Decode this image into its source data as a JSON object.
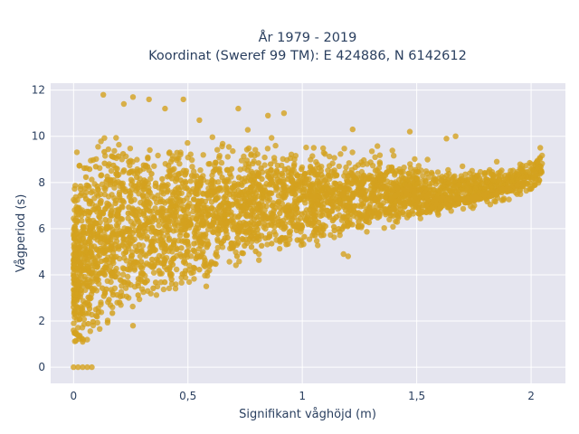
{
  "chart_data": {
    "type": "scatter",
    "title": "År 1979 - 2019",
    "subtitle": "Koordinat (Sweref 99 TM): E 424886, N 6142612",
    "xlabel": "Signifikant våghöjd (m)",
    "ylabel": "Vågperiod (s)",
    "xlim": [
      -0.1,
      2.15
    ],
    "ylim": [
      -0.7,
      12.3
    ],
    "x_ticks": [
      0,
      0.5,
      1,
      1.5,
      2
    ],
    "x_tick_labels": [
      "0",
      "0,5",
      "1",
      "1,5",
      "2"
    ],
    "y_ticks": [
      0,
      2,
      4,
      6,
      8,
      10,
      12
    ],
    "y_tick_labels": [
      "0",
      "2",
      "4",
      "6",
      "8",
      "10",
      "12"
    ],
    "grid": true,
    "colors": {
      "marker": "#d4a11e",
      "plot_bg": "#e5e5ef",
      "grid": "#ffffff",
      "text": "#2a3f5f"
    },
    "envelope": {
      "x": [
        0.0,
        0.05,
        0.1,
        0.2,
        0.3,
        0.5,
        0.7,
        1.0,
        1.3,
        1.6,
        1.9,
        2.05
      ],
      "y_low": [
        1.0,
        1.1,
        1.3,
        2.2,
        2.8,
        3.6,
        4.3,
        5.1,
        5.8,
        6.4,
        7.2,
        7.8
      ],
      "y_high": [
        9.5,
        11.0,
        11.8,
        11.7,
        11.3,
        10.8,
        10.8,
        10.3,
        9.9,
        9.0,
        8.8,
        9.5
      ]
    },
    "series": [
      {
        "values": [
          [
            0.0,
            0.0
          ],
          [
            0.02,
            0.0
          ],
          [
            0.04,
            0.0
          ],
          [
            0.06,
            0.0
          ],
          [
            0.08,
            0.0
          ],
          [
            0.13,
            11.8
          ],
          [
            0.26,
            11.7
          ],
          [
            0.22,
            11.4
          ],
          [
            0.33,
            11.6
          ],
          [
            0.48,
            11.6
          ],
          [
            0.4,
            11.2
          ],
          [
            0.72,
            11.2
          ],
          [
            0.85,
            10.9
          ],
          [
            0.92,
            11.0
          ],
          [
            1.47,
            10.2
          ],
          [
            1.63,
            9.9
          ],
          [
            1.67,
            10.0
          ],
          [
            1.22,
            10.3
          ],
          [
            1.7,
            8.7
          ],
          [
            1.85,
            8.9
          ],
          [
            2.04,
            9.5
          ],
          [
            2.0,
            8.8
          ],
          [
            1.2,
            4.8
          ],
          [
            1.18,
            4.9
          ],
          [
            0.26,
            1.8
          ],
          [
            0.58,
            3.5
          ],
          [
            0.04,
            1.1
          ],
          [
            0.0,
            1.6
          ],
          [
            1.05,
            9.5
          ],
          [
            0.55,
            10.7
          ]
        ]
      }
    ]
  }
}
